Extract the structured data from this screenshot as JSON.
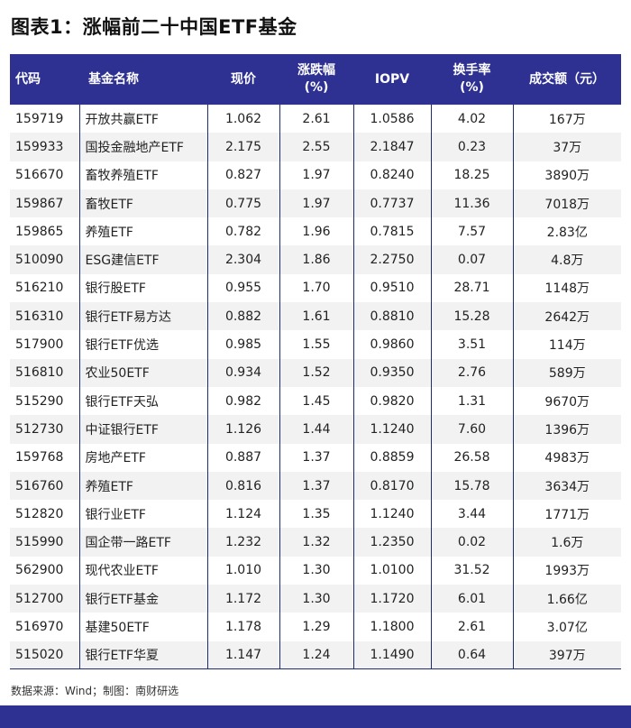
{
  "title": "图表1：涨幅前二十中国ETF基金",
  "headers": {
    "code": "代码",
    "name": "基金名称",
    "price": "现价",
    "change_l1": "涨跌幅",
    "change_l2": "(%)",
    "iopv": "IOPV",
    "turnover_l1": "换手率",
    "turnover_l2": "(%)",
    "volume": "成交额（元）"
  },
  "rows": [
    {
      "code": "159719",
      "name": "开放共赢ETF",
      "price": "1.062",
      "change": "2.61",
      "iopv": "1.0586",
      "turnover": "4.02",
      "volume": "167万"
    },
    {
      "code": "159933",
      "name": "国投金融地产ETF",
      "price": "2.175",
      "change": "2.55",
      "iopv": "2.1847",
      "turnover": "0.23",
      "volume": "37万"
    },
    {
      "code": "516670",
      "name": "畜牧养殖ETF",
      "price": "0.827",
      "change": "1.97",
      "iopv": "0.8240",
      "turnover": "18.25",
      "volume": "3890万"
    },
    {
      "code": "159867",
      "name": "畜牧ETF",
      "price": "0.775",
      "change": "1.97",
      "iopv": "0.7737",
      "turnover": "11.36",
      "volume": "7018万"
    },
    {
      "code": "159865",
      "name": "养殖ETF",
      "price": "0.782",
      "change": "1.96",
      "iopv": "0.7815",
      "turnover": "7.57",
      "volume": "2.83亿"
    },
    {
      "code": "510090",
      "name": "ESG建信ETF",
      "price": "2.304",
      "change": "1.86",
      "iopv": "2.2750",
      "turnover": "0.07",
      "volume": "4.8万"
    },
    {
      "code": "516210",
      "name": "银行股ETF",
      "price": "0.955",
      "change": "1.70",
      "iopv": "0.9510",
      "turnover": "28.71",
      "volume": "1148万"
    },
    {
      "code": "516310",
      "name": "银行ETF易方达",
      "price": "0.882",
      "change": "1.61",
      "iopv": "0.8810",
      "turnover": "15.28",
      "volume": "2642万"
    },
    {
      "code": "517900",
      "name": "银行ETF优选",
      "price": "0.985",
      "change": "1.55",
      "iopv": "0.9860",
      "turnover": "3.51",
      "volume": "114万"
    },
    {
      "code": "516810",
      "name": "农业50ETF",
      "price": "0.934",
      "change": "1.52",
      "iopv": "0.9350",
      "turnover": "2.76",
      "volume": "589万"
    },
    {
      "code": "515290",
      "name": "银行ETF天弘",
      "price": "0.982",
      "change": "1.45",
      "iopv": "0.9820",
      "turnover": "1.31",
      "volume": "9670万"
    },
    {
      "code": "512730",
      "name": "中证银行ETF",
      "price": "1.126",
      "change": "1.44",
      "iopv": "1.1240",
      "turnover": "7.60",
      "volume": "1396万"
    },
    {
      "code": "159768",
      "name": "房地产ETF",
      "price": "0.887",
      "change": "1.37",
      "iopv": "0.8859",
      "turnover": "26.58",
      "volume": "4983万"
    },
    {
      "code": "516760",
      "name": "养殖ETF",
      "price": "0.816",
      "change": "1.37",
      "iopv": "0.8170",
      "turnover": "15.78",
      "volume": "3634万"
    },
    {
      "code": "512820",
      "name": "银行业ETF",
      "price": "1.124",
      "change": "1.35",
      "iopv": "1.1240",
      "turnover": "3.44",
      "volume": "1771万"
    },
    {
      "code": "515990",
      "name": "国企带一路ETF",
      "price": "1.232",
      "change": "1.32",
      "iopv": "1.2350",
      "turnover": "0.02",
      "volume": "1.6万"
    },
    {
      "code": "562900",
      "name": "现代农业ETF",
      "price": "1.010",
      "change": "1.30",
      "iopv": "1.0100",
      "turnover": "31.52",
      "volume": "1993万"
    },
    {
      "code": "512700",
      "name": "银行ETF基金",
      "price": "1.172",
      "change": "1.30",
      "iopv": "1.1720",
      "turnover": "6.01",
      "volume": "1.66亿"
    },
    {
      "code": "516970",
      "name": "基建50ETF",
      "price": "1.178",
      "change": "1.29",
      "iopv": "1.1800",
      "turnover": "2.61",
      "volume": "3.07亿"
    },
    {
      "code": "515020",
      "name": "银行ETF华夏",
      "price": "1.147",
      "change": "1.24",
      "iopv": "1.1490",
      "turnover": "0.64",
      "volume": "397万"
    }
  ],
  "source": "数据来源：Wind；制图：南财研选",
  "colors": {
    "header_bg": "#2e3192",
    "alt_row": "#f2f2f2",
    "footer_bar": "#2e3192"
  }
}
